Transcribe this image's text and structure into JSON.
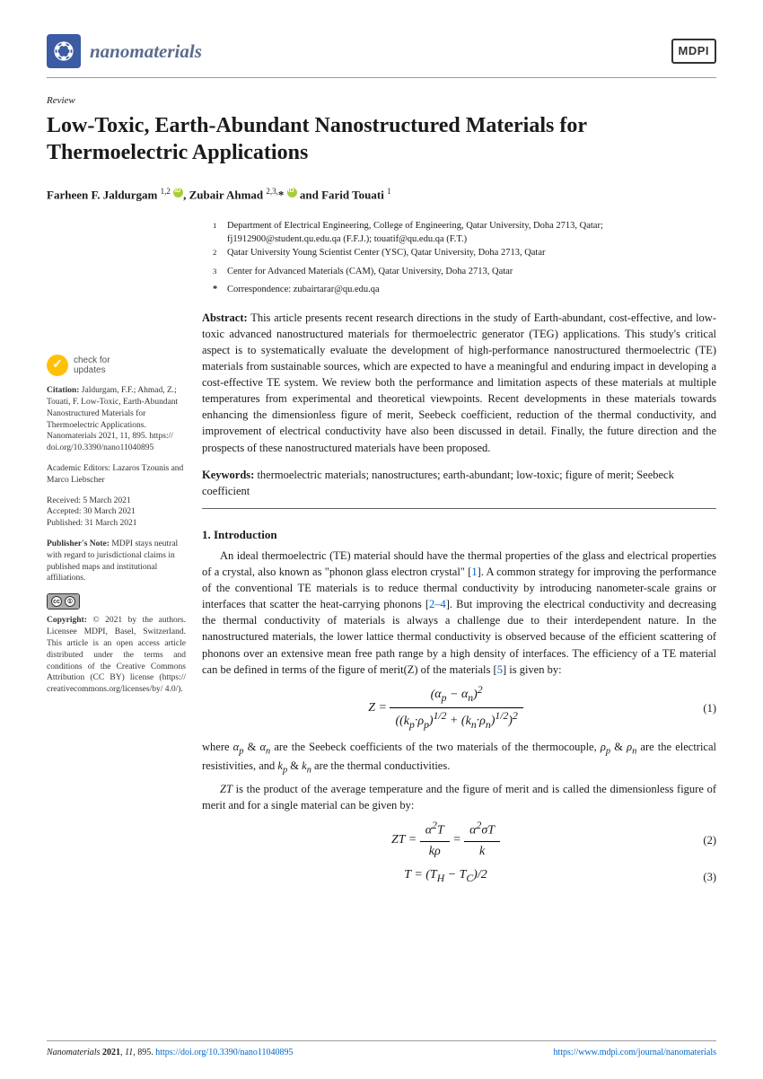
{
  "journal": {
    "name": "nanomaterials",
    "publisher_logo": "MDPI"
  },
  "article": {
    "type": "Review",
    "title": "Low-Toxic, Earth-Abundant Nanostructured Materials for Thermoelectric Applications",
    "authors_html": "Farheen F. Jaldurgam <sup>1,2</sup> <span class='orcid'></span>, Zubair Ahmad <sup>2,3,</sup>* <span class='orcid'></span> and Farid Touati <sup>1</sup>"
  },
  "affiliations": {
    "a1": "Department of Electrical Engineering, College of Engineering, Qatar University, Doha 2713, Qatar; fj1912900@student.qu.edu.qa (F.F.J.); touatif@qu.edu.qa (F.T.)",
    "a2": "Qatar University Young Scientist Center (YSC), Qatar University, Doha 2713, Qatar",
    "a3": "Center for Advanced Materials (CAM), Qatar University, Doha 2713, Qatar",
    "corr": "Correspondence: zubairtarar@qu.edu.qa"
  },
  "abstract": {
    "label": "Abstract:",
    "text": "This article presents recent research directions in the study of Earth-abundant, cost-effective, and low-toxic advanced nanostructured materials for thermoelectric generator (TEG) applications. This study's critical aspect is to systematically evaluate the development of high-performance nanostructured thermoelectric (TE) materials from sustainable sources, which are expected to have a meaningful and enduring impact in developing a cost-effective TE system. We review both the performance and limitation aspects of these materials at multiple temperatures from experimental and theoretical viewpoints. Recent developments in these materials towards enhancing the dimensionless figure of merit, Seebeck coefficient, reduction of the thermal conductivity, and improvement of electrical conductivity have also been discussed in detail. Finally, the future direction and the prospects of these nanostructured materials have been proposed."
  },
  "keywords": {
    "label": "Keywords:",
    "text": "thermoelectric materials; nanostructures; earth-abundant; low-toxic; figure of merit; Seebeck coefficient"
  },
  "sidebar": {
    "check_updates": "check for updates",
    "citation_label": "Citation:",
    "citation": "Jaldurgam, F.F.; Ahmad, Z.; Touati, F. Low-Toxic, Earth-Abundant Nanostructured Materials for Thermoelectric Applications. Nanomaterials 2021, 11, 895. https:// doi.org/10.3390/nano11040895",
    "editors": "Academic Editors: Lazaros Tzounis and Marco Liebscher",
    "received": "Received: 5 March 2021",
    "accepted": "Accepted: 30 March 2021",
    "published": "Published: 31 March 2021",
    "pubnote_label": "Publisher's Note:",
    "pubnote": "MDPI stays neutral with regard to jurisdictional claims in published maps and institutional affiliations.",
    "copyright_label": "Copyright:",
    "copyright": "© 2021 by the authors. Licensee MDPI, Basel, Switzerland. This article is an open access article distributed under the terms and conditions of the Creative Commons Attribution (CC BY) license (https:// creativecommons.org/licenses/by/ 4.0/)."
  },
  "intro": {
    "heading": "1. Introduction",
    "p1a": "An ideal thermoelectric (TE) material should have the thermal properties of the glass and electrical properties of a crystal, also known as \"phonon glass electron crystal\" [",
    "p1b": "]. A common strategy for improving the performance of the conventional TE materials is to reduce thermal conductivity by introducing nanometer-scale grains or interfaces that scatter the heat-carrying phonons [",
    "p1c": "]. But improving the electrical conductivity and decreasing the thermal conductivity of materials is always a challenge due to their interdependent nature. In the nanostructured materials, the lower lattice thermal conductivity is observed because of the efficient scattering of phonons over an extensive mean free path range by a high density of interfaces. The efficiency of a TE material can be defined in terms of the figure of merit(Z) of the materials [",
    "p1d": "] is given by:",
    "ref1": "1",
    "ref24": "2–4",
    "ref5": "5",
    "p2": "where αp & αn are the Seebeck coefficients of the two materials of the thermocouple, ρp & ρn are the electrical resistivities, and kp & kn are the thermal conductivities.",
    "p3": "ZT is the product of the average temperature and the figure of merit and is called the dimensionless figure of merit and for a single material can be given by:"
  },
  "equations": {
    "eq1_num": "(1)",
    "eq2_num": "(2)",
    "eq3_num": "(3)"
  },
  "footer": {
    "left": "Nanomaterials 2021, 11, 895. https://doi.org/10.3390/nano11040895",
    "right": "https://www.mdpi.com/journal/nanomaterials"
  }
}
